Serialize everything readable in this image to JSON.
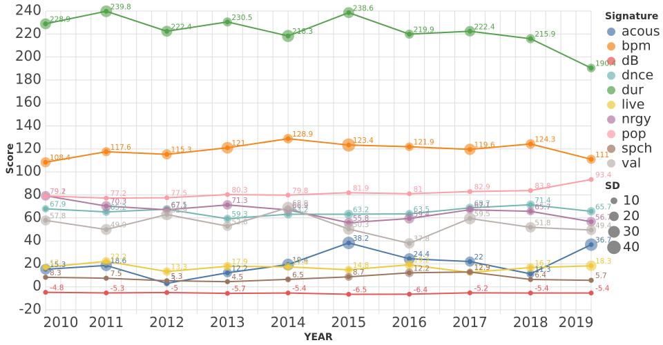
{
  "chart_data": {
    "type": "line",
    "title": "",
    "xlabel": "YEAR",
    "ylabel": "Score",
    "x": [
      2010,
      2011,
      2012,
      2013,
      2014,
      2015,
      2016,
      2017,
      2018,
      2019
    ],
    "x_tick_labels": [
      "2010",
      "2011",
      "2012",
      "2013",
      "2014",
      "2015",
      "2016",
      "2017",
      "2018",
      "2019"
    ],
    "ylim": [
      -20,
      240
    ],
    "y_ticks": [
      -20,
      0,
      20,
      40,
      60,
      80,
      100,
      120,
      140,
      160,
      180,
      200,
      220,
      240
    ],
    "grid": true,
    "legend_placement": "right",
    "legend_title": "Signature",
    "size_legend_title": "SD",
    "size_legend_values": [
      10,
      20,
      30,
      40
    ],
    "series": [
      {
        "name": "acous",
        "color": "#4c78a8",
        "values": [
          15.3,
          18.6,
          3,
          12.2,
          19.4,
          38.2,
          24.4,
          22,
          11.3,
          36.7
        ],
        "sd": [
          25,
          28,
          8,
          18,
          30,
          34,
          27,
          22,
          14,
          34
        ]
      },
      {
        "name": "bpm",
        "color": "#f58518",
        "values": [
          108.4,
          117.6,
          115.3,
          121,
          128.9,
          123.4,
          121.9,
          119.6,
          124.3,
          111
        ],
        "sd": [
          22,
          18,
          22,
          30,
          20,
          38,
          16,
          28,
          20,
          18
        ]
      },
      {
        "name": "dB",
        "color": "#e45756",
        "values": [
          -4.8,
          -5.3,
          -5,
          -5.7,
          -5.4,
          -6.5,
          -6.4,
          -5.2,
          -5.4,
          -5.4
        ],
        "sd": [
          2,
          2,
          2,
          2,
          2,
          2,
          2,
          2,
          2,
          2
        ]
      },
      {
        "name": "dnce",
        "color": "#72b7b2",
        "values": [
          67.9,
          65.2,
          67.5,
          59.3,
          63.2,
          63.2,
          63.5,
          68.7,
          71.4,
          65.7
        ],
        "sd": [
          12,
          14,
          16,
          14,
          16,
          18,
          14,
          16,
          16,
          16
        ]
      },
      {
        "name": "dur",
        "color": "#54a24b",
        "values": [
          228.9,
          239.8,
          222.4,
          230.5,
          218.3,
          238.6,
          219.9,
          222.4,
          215.9,
          190.4
        ],
        "sd": [
          26,
          30,
          26,
          18,
          32,
          26,
          18,
          24,
          18,
          16
        ]
      },
      {
        "name": "live",
        "color": "#eeca3b",
        "values": [
          17,
          22.2,
          13.3,
          17.9,
          17.4,
          14.8,
          19.2,
          12.5,
          16.7,
          18.3
        ],
        "sd": [
          10,
          16,
          16,
          16,
          14,
          14,
          18,
          10,
          16,
          24
        ]
      },
      {
        "name": "nrgy",
        "color": "#b279a2",
        "values": [
          79.2,
          70.3,
          67.1,
          71.3,
          66.9,
          55.8,
          59.4,
          67.1,
          65.7,
          56.7
        ],
        "sd": [
          20,
          22,
          12,
          20,
          16,
          20,
          22,
          14,
          14,
          20
        ]
      },
      {
        "name": "pop",
        "color": "#ff9da6",
        "values": [
          79.1,
          77.2,
          77.5,
          80.3,
          79.8,
          81.9,
          81,
          82.9,
          83.8,
          93.4
        ],
        "sd": [
          4,
          4,
          4,
          4,
          4,
          4,
          4,
          4,
          4,
          4
        ]
      },
      {
        "name": "spch",
        "color": "#9d755d",
        "values": [
          8.3,
          7.5,
          5.3,
          4.5,
          6.5,
          8.7,
          12.2,
          12.9,
          6.4,
          5.7
        ],
        "sd": [
          6,
          6,
          6,
          6,
          8,
          14,
          16,
          10,
          6,
          6
        ]
      },
      {
        "name": "val",
        "color": "#bab0ac",
        "values": [
          57.8,
          49.9,
          62.9,
          52.8,
          68.9,
          50.3,
          37.8,
          59.5,
          51.8,
          49.4
        ],
        "sd": [
          22,
          26,
          28,
          20,
          30,
          28,
          24,
          30,
          24,
          22
        ]
      }
    ],
    "point_labels": [
      {
        "series": "acous",
        "labels": [
          "15.3",
          "18.6",
          "3",
          "12.2",
          "19.4",
          "38.2",
          "24.4",
          "22",
          "11.3",
          "36.7"
        ]
      },
      {
        "series": "bpm",
        "labels": [
          "108.4",
          "117.6",
          "115.3",
          "121",
          "128.9",
          "123.4",
          "121.9",
          "119.6",
          "124.3",
          "111"
        ]
      },
      {
        "series": "dB",
        "labels": [
          "-4.8",
          "-5.3",
          "-5",
          "-5.7",
          "-5.4",
          "-6.5",
          "-6.4",
          "-5.2",
          "-5.4",
          "-5.4"
        ]
      },
      {
        "series": "dnce",
        "labels": [
          "67.9",
          "65.2",
          "67.5",
          "59.3",
          "63.2",
          "63.2",
          "63.5",
          "68.7",
          "71.4",
          "65.7"
        ]
      },
      {
        "series": "dur",
        "labels": [
          "228.9",
          "239.8",
          "222.4",
          "230.5",
          "218.3",
          "238.6",
          "219.9",
          "222.4",
          "215.9",
          "190.4"
        ]
      },
      {
        "series": "live",
        "labels": [
          "17",
          "22.2",
          "13.3",
          "17.9",
          "17.4",
          "14.8",
          "19.2",
          "12.5",
          "16.7",
          "18.3"
        ]
      },
      {
        "series": "nrgy",
        "labels": [
          "79.2",
          "70.3",
          "67.1",
          "71.3",
          "66.9",
          "55.8",
          "59.4",
          "67.1",
          "65.7",
          "56.7"
        ]
      },
      {
        "series": "pop",
        "labels": [
          "79.1",
          "77.2",
          "77.5",
          "80.3",
          "79.8",
          "81.9",
          "81",
          "82.9",
          "83.8",
          "93.4"
        ]
      },
      {
        "series": "spch",
        "labels": [
          "8.3",
          "7.5",
          "5.3",
          "4.5",
          "6.5",
          "8.7",
          "12.2",
          "12.9",
          "6.4",
          "5.7"
        ]
      },
      {
        "series": "val",
        "labels": [
          "57.8",
          "49.9",
          "62.9",
          "52.8",
          "68.9",
          "50.3",
          "37.8",
          "59.5",
          "51.8",
          "49.4"
        ]
      }
    ]
  }
}
